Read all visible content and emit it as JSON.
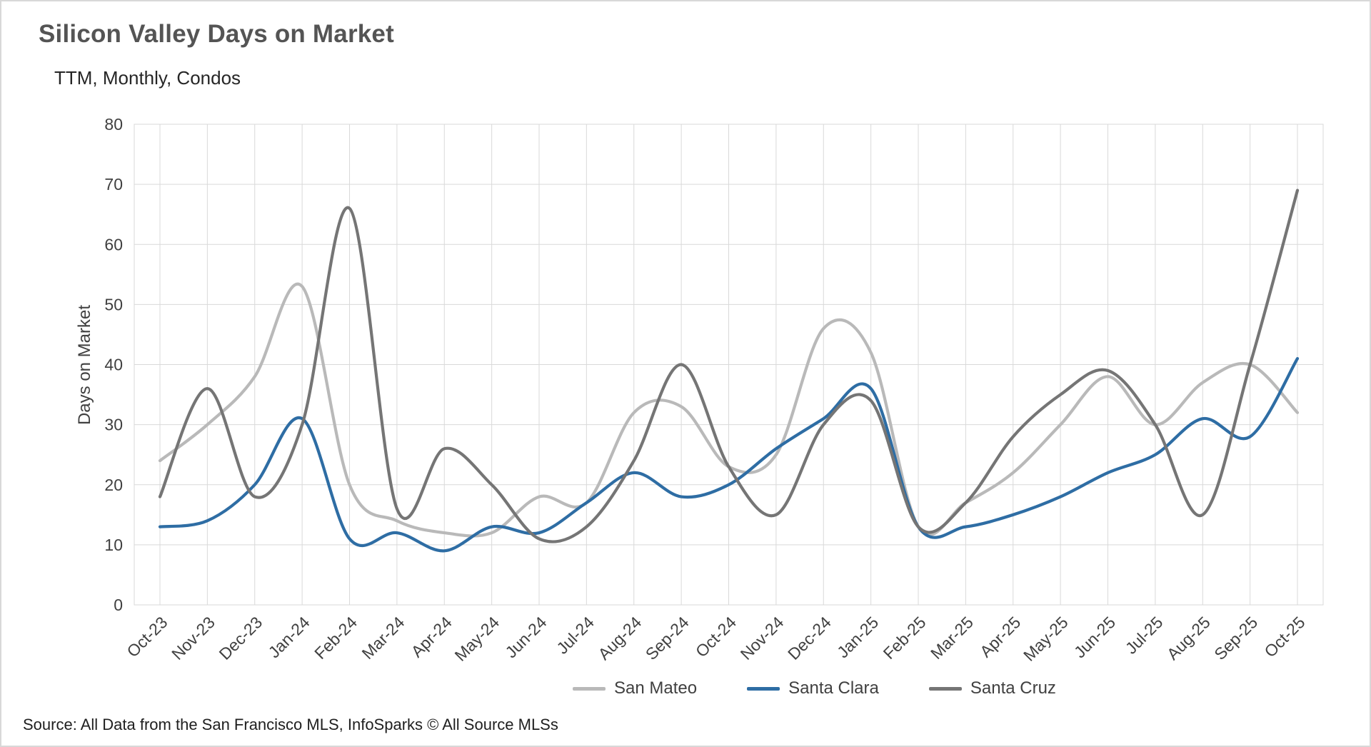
{
  "chart_data": {
    "type": "line",
    "title": "Silicon Valley Days on Market",
    "subtitle": "TTM, Monthly, Condos",
    "ylabel": "Days on Market",
    "xlabel": "",
    "ylim": [
      0,
      80
    ],
    "ytick_interval": 10,
    "grid": true,
    "line_smoothing": true,
    "legend_position": "bottom",
    "categories": [
      "Oct-23",
      "Nov-23",
      "Dec-23",
      "Jan-24",
      "Feb-24",
      "Mar-24",
      "Apr-24",
      "May-24",
      "Jun-24",
      "Jul-24",
      "Aug-24",
      "Sep-24",
      "Oct-24",
      "Nov-24",
      "Dec-24",
      "Jan-25",
      "Feb-25",
      "Mar-25",
      "Apr-25",
      "May-25",
      "Jun-25",
      "Jul-25",
      "Aug-25",
      "Sep-25",
      "Oct-25"
    ],
    "series": [
      {
        "name": "San Mateo",
        "color": "#b9b9b9",
        "values": [
          24,
          30,
          38,
          53,
          20,
          14,
          12,
          12,
          18,
          17,
          32,
          33,
          23,
          25,
          46,
          42,
          13,
          17,
          22,
          30,
          38,
          30,
          37,
          40,
          32
        ]
      },
      {
        "name": "Santa Clara",
        "color": "#2e6da4",
        "values": [
          13,
          14,
          20,
          31,
          11,
          12,
          9,
          13,
          12,
          17,
          22,
          18,
          20,
          26,
          31,
          36,
          13,
          13,
          15,
          18,
          22,
          25,
          31,
          28,
          41
        ]
      },
      {
        "name": "Santa Cruz",
        "color": "#757575",
        "values": [
          18,
          36,
          18,
          30,
          66,
          16,
          26,
          20,
          11,
          13,
          24,
          40,
          23,
          15,
          30,
          34,
          13,
          17,
          28,
          35,
          39,
          30,
          15,
          40,
          69
        ]
      }
    ]
  },
  "footer": {
    "source": "Source: All Data from the San Francisco MLS, InfoSparks © All Source MLSs"
  },
  "theme": {
    "grid_color": "#d9d9d9",
    "axis_text_color": "#404040",
    "title_color": "#545454"
  }
}
